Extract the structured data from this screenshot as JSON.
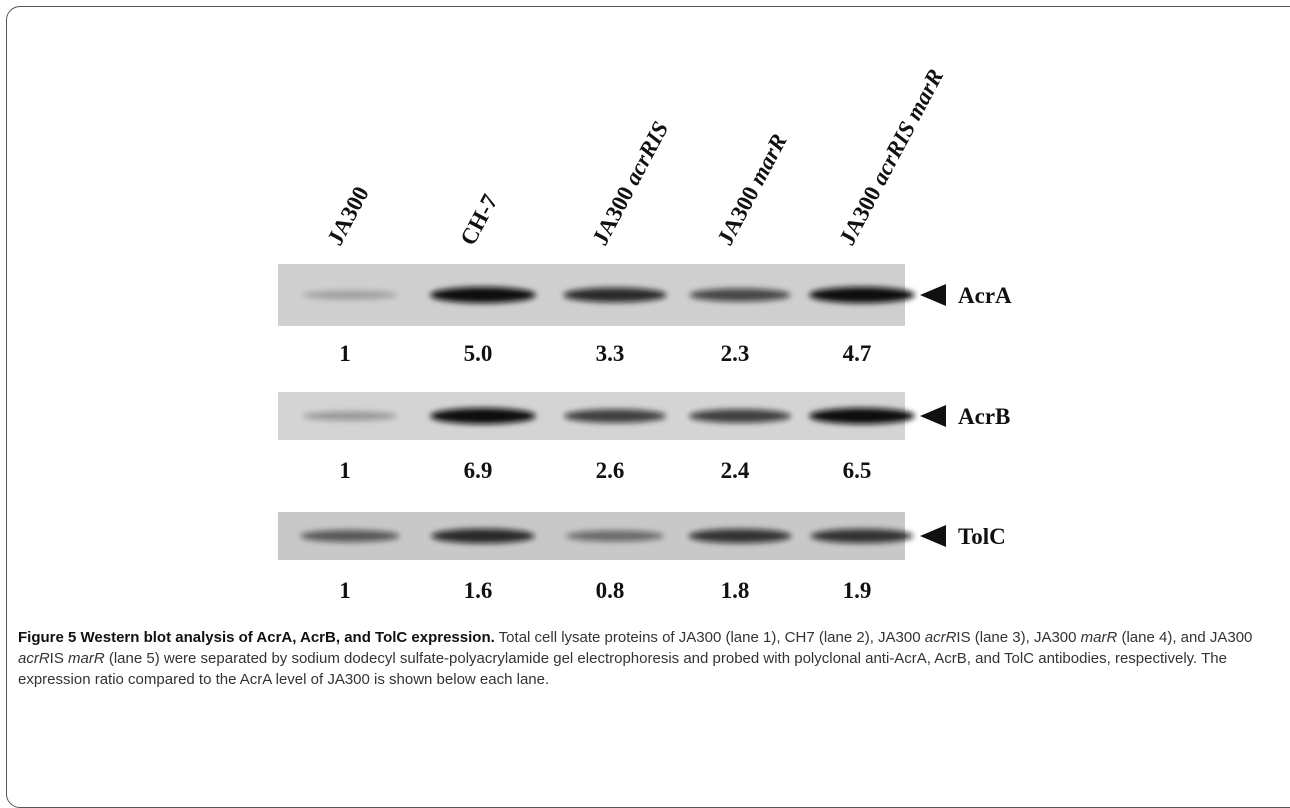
{
  "figure": {
    "lanes": [
      {
        "strain": "JA300"
      },
      {
        "strain": "CH-7"
      },
      {
        "strain": "JA300",
        "mutation": "acrRIS"
      },
      {
        "strain": "JA300",
        "mutation": "marR"
      },
      {
        "strain": "JA300",
        "mutation": "acrRIS marR"
      }
    ],
    "blots": [
      {
        "label": "AcrA",
        "ratios": [
          "1",
          "5.0",
          "3.3",
          "2.3",
          "4.7"
        ]
      },
      {
        "label": "AcrB",
        "ratios": [
          "1",
          "6.9",
          "2.6",
          "2.4",
          "6.5"
        ]
      },
      {
        "label": "TolC",
        "ratios": [
          "1",
          "1.6",
          "0.8",
          "1.8",
          "1.9"
        ]
      }
    ]
  },
  "caption": {
    "title": "Figure 5 Western blot analysis of AcrA, AcrB, and TolC expression.",
    "body": [
      {
        "text": " Total cell lysate proteins of JA300 (lane 1), CH7 (lane 2), JA300 ",
        "italic": false
      },
      {
        "text": "acrR",
        "italic": true
      },
      {
        "text": "IS (lane 3), JA300 ",
        "italic": false
      },
      {
        "text": "marR",
        "italic": true
      },
      {
        "text": " (lane 4), and JA300 ",
        "italic": false
      },
      {
        "text": "acrR",
        "italic": true
      },
      {
        "text": "IS ",
        "italic": false
      },
      {
        "text": "marR",
        "italic": true
      },
      {
        "text": " (lane 5) were separated by sodium dodecyl sulfate-polyacrylamide gel electrophoresis and probed with polyclonal anti-AcrA, AcrB, and TolC antibodies, respectively. The expression ratio compared to the AcrA level of JA300 is shown below each lane.",
        "italic": false
      }
    ]
  }
}
